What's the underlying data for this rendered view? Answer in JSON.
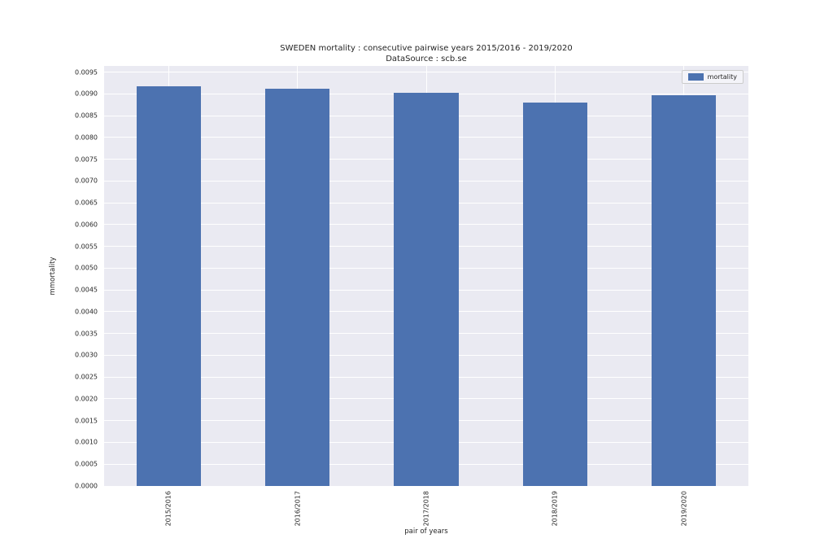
{
  "figure": {
    "title": "SWEDEN mortality : consecutive pairwise years 2015/2016 - 2019/2020",
    "subtitle": "DataSource : scb.se"
  },
  "legend": {
    "label": "mortality"
  },
  "chart_data": {
    "type": "bar",
    "title": "SWEDEN mortality : consecutive pairwise years 2015/2016 - 2019/2020",
    "subtitle": "DataSource : scb.se",
    "xlabel": "pair of years",
    "ylabel": "mmortality",
    "categories": [
      "2015/2016",
      "2016/2017",
      "2017/2018",
      "2018/2019",
      "2019/2020"
    ],
    "series": [
      {
        "name": "mortality",
        "values": [
          0.00917,
          0.00911,
          0.00903,
          0.0088,
          0.00897
        ]
      }
    ],
    "ylim": [
      0,
      0.00964
    ],
    "yticks": [
      "0.0000",
      "0.0005",
      "0.0010",
      "0.0015",
      "0.0020",
      "0.0025",
      "0.0030",
      "0.0035",
      "0.0040",
      "0.0045",
      "0.0050",
      "0.0055",
      "0.0060",
      "0.0065",
      "0.0070",
      "0.0075",
      "0.0080",
      "0.0085",
      "0.0090",
      "0.0095"
    ],
    "grid": true,
    "grid_style": "seaborn-darkgrid",
    "legend_position": "upper right",
    "bar_width_fraction": 0.5,
    "colors": {
      "bar": "#4c72b0",
      "plot_background": "#eaeaf2",
      "gridline": "#ffffff",
      "text": "#262626",
      "legend_background": "#f4f4f9",
      "legend_border": "#cccccc",
      "figure_background": "#ffffff"
    }
  }
}
